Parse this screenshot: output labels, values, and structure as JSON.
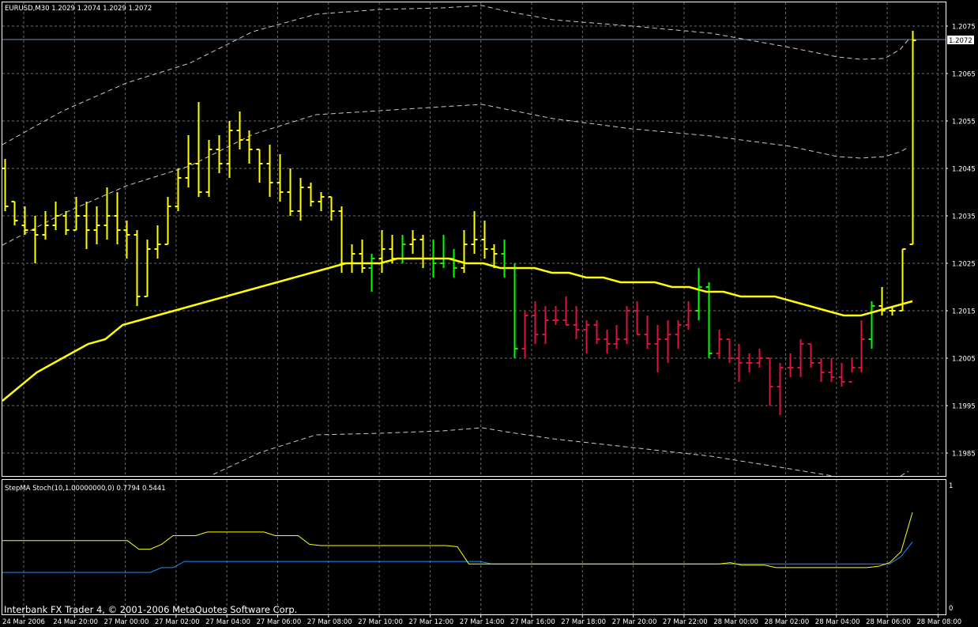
{
  "window": {
    "symbol_header": "EURUSD,M30  1.2029 1.2074 1.2029 1.2072",
    "indicator_header": "StepMA Stoch(10,1.00000000,0) 0.7794 0.5441",
    "copyright": "Interbank FX Trader 4, © 2001-2006 MetaQuotes Software Corp.",
    "current_price": "1.2072"
  },
  "price_axis": [
    "1.2075",
    "1.2065",
    "1.2055",
    "1.2045",
    "1.2035",
    "1.2025",
    "1.2015",
    "1.2005",
    "1.1995",
    "1.1985"
  ],
  "indicator_axis": [
    "1",
    "0"
  ],
  "time_axis": [
    "24 Mar 2006",
    "24 Mar 20:00",
    "27 Mar 00:00",
    "27 Mar 02:00",
    "27 Mar 04:00",
    "27 Mar 06:00",
    "27 Mar 08:00",
    "27 Mar 10:00",
    "27 Mar 12:00",
    "27 Mar 14:00",
    "27 Mar 16:00",
    "27 Mar 18:00",
    "27 Mar 20:00",
    "27 Mar 22:00",
    "28 Mar 00:00",
    "28 Mar 02:00",
    "28 Mar 04:00",
    "28 Mar 06:00",
    "28 Mar 08:00"
  ],
  "colors": {
    "background": "#000000",
    "frame": "#ffffff",
    "grid": "#6b6b6b",
    "bar_yellow": "#ffff00",
    "bar_green": "#00ff00",
    "bar_red": "#dc143c",
    "ma_line": "#ffff00",
    "envelope": "#c8c8c8",
    "bid_line": "#7890b4",
    "stoch_yellow": "#ffff00",
    "stoch_blue": "#1e90ff"
  },
  "chart_data": {
    "type": "ohlc",
    "symbol": "EURUSD",
    "timeframe": "M30",
    "ylim": [
      1.1982,
      1.2083
    ],
    "color_codes": {
      "y": "yellow",
      "g": "green",
      "r": "red"
    },
    "bars": [
      [
        1.2045,
        1.2047,
        1.2036,
        1.2037,
        "y"
      ],
      [
        1.2038,
        1.2038,
        1.2033,
        1.2034,
        "y"
      ],
      [
        1.2033,
        1.2037,
        1.2031,
        1.2032,
        "y"
      ],
      [
        1.2032,
        1.2035,
        1.2025,
        1.2031,
        "y"
      ],
      [
        1.2031,
        1.2036,
        1.203,
        1.2033,
        "y"
      ],
      [
        1.2033,
        1.2038,
        1.2032,
        1.2035,
        "y"
      ],
      [
        1.2035,
        1.2036,
        1.2031,
        1.2032,
        "y"
      ],
      [
        1.2032,
        1.2039,
        1.2032,
        1.2035,
        "y"
      ],
      [
        1.2035,
        1.2038,
        1.2028,
        1.2032,
        "y"
      ],
      [
        1.2032,
        1.2037,
        1.2029,
        1.2033,
        "y"
      ],
      [
        1.2033,
        1.2041,
        1.203,
        1.2035,
        "y"
      ],
      [
        1.2035,
        1.204,
        1.2029,
        1.2032,
        "y"
      ],
      [
        1.2032,
        1.2034,
        1.2026,
        1.2031,
        "y"
      ],
      [
        1.2031,
        1.2032,
        1.2016,
        1.2018,
        "y"
      ],
      [
        1.2018,
        1.203,
        1.2018,
        1.2028,
        "y"
      ],
      [
        1.2028,
        1.2033,
        1.2026,
        1.2029,
        "y"
      ],
      [
        1.2029,
        1.2039,
        1.2029,
        1.2037,
        "y"
      ],
      [
        1.2037,
        1.2045,
        1.2036,
        1.2043,
        "y"
      ],
      [
        1.2043,
        1.2052,
        1.2041,
        1.2046,
        "y"
      ],
      [
        1.2046,
        1.2059,
        1.2039,
        1.204,
        "y"
      ],
      [
        1.204,
        1.2051,
        1.2039,
        1.2049,
        "y"
      ],
      [
        1.2049,
        1.2052,
        1.2044,
        1.2046,
        "y"
      ],
      [
        1.2046,
        1.2055,
        1.2043,
        1.2053,
        "y"
      ],
      [
        1.2053,
        1.2057,
        1.2049,
        1.2051,
        "y"
      ],
      [
        1.2051,
        1.2053,
        1.2046,
        1.2049,
        "y"
      ],
      [
        1.2049,
        1.2049,
        1.2042,
        1.2046,
        "y"
      ],
      [
        1.2046,
        1.205,
        1.2039,
        1.2042,
        "y"
      ],
      [
        1.2042,
        1.2048,
        1.2038,
        1.204,
        "y"
      ],
      [
        1.204,
        1.2045,
        1.2035,
        1.2036,
        "y"
      ],
      [
        1.2036,
        1.2043,
        1.2034,
        1.2041,
        "y"
      ],
      [
        1.2041,
        1.2042,
        1.2037,
        1.2038,
        "y"
      ],
      [
        1.2038,
        1.204,
        1.2036,
        1.2039,
        "y"
      ],
      [
        1.2039,
        1.2039,
        1.2034,
        1.2036,
        "y"
      ],
      [
        1.2036,
        1.2037,
        1.2023,
        1.2025,
        "y"
      ],
      [
        1.2025,
        1.2029,
        1.2023,
        1.2027,
        "y"
      ],
      [
        1.2027,
        1.203,
        1.2023,
        1.2024,
        "y"
      ],
      [
        1.2024,
        1.2027,
        1.2019,
        1.2026,
        "g"
      ],
      [
        1.2026,
        1.2032,
        1.2023,
        1.2028,
        "y"
      ],
      [
        1.2028,
        1.2031,
        1.2025,
        1.2026,
        "y"
      ],
      [
        1.2026,
        1.2031,
        1.2025,
        1.2029,
        "g"
      ],
      [
        1.2029,
        1.2032,
        1.2027,
        1.203,
        "y"
      ],
      [
        1.203,
        1.2031,
        1.2024,
        1.2026,
        "y"
      ],
      [
        1.2026,
        1.203,
        1.2022,
        1.2025,
        "g"
      ],
      [
        1.2025,
        1.2031,
        1.2024,
        1.2026,
        "g"
      ],
      [
        1.2026,
        1.2028,
        1.2022,
        1.2024,
        "g"
      ],
      [
        1.2024,
        1.2032,
        1.2023,
        1.2029,
        "y"
      ],
      [
        1.2029,
        1.2036,
        1.2027,
        1.203,
        "y"
      ],
      [
        1.203,
        1.2034,
        1.2026,
        1.2028,
        "y"
      ],
      [
        1.2028,
        1.2029,
        1.2024,
        1.2027,
        "y"
      ],
      [
        1.2027,
        1.203,
        1.2022,
        1.2024,
        "g"
      ],
      [
        1.2024,
        1.2025,
        1.2005,
        1.2007,
        "g"
      ],
      [
        1.2007,
        1.2015,
        1.2005,
        1.2014,
        "r"
      ],
      [
        1.2014,
        1.2017,
        1.2008,
        1.201,
        "r"
      ],
      [
        1.201,
        1.2016,
        1.2008,
        1.2013,
        "r"
      ],
      [
        1.2013,
        1.2016,
        1.2012,
        1.2013,
        "r"
      ],
      [
        1.2013,
        1.2018,
        1.2012,
        1.2012,
        "r"
      ],
      [
        1.2012,
        1.2016,
        1.2009,
        1.2011,
        "r"
      ],
      [
        1.2011,
        1.2013,
        1.2006,
        1.2012,
        "r"
      ],
      [
        1.2012,
        1.2013,
        1.2008,
        1.2009,
        "r"
      ],
      [
        1.2009,
        1.2011,
        1.2006,
        1.2008,
        "r"
      ],
      [
        1.2008,
        1.2012,
        1.2007,
        1.2009,
        "r"
      ],
      [
        1.2009,
        1.2016,
        1.2008,
        1.2015,
        "r"
      ],
      [
        1.2015,
        1.2017,
        1.201,
        1.201,
        "r"
      ],
      [
        1.201,
        1.2014,
        1.2007,
        1.2008,
        "r"
      ],
      [
        1.2008,
        1.2012,
        1.2002,
        1.2009,
        "r"
      ],
      [
        1.2009,
        1.2013,
        1.2004,
        1.201,
        "r"
      ],
      [
        1.201,
        1.2013,
        1.2007,
        1.2012,
        "r"
      ],
      [
        1.2012,
        1.2017,
        1.2011,
        1.2015,
        "r"
      ],
      [
        1.2015,
        1.2024,
        1.2013,
        1.202,
        "g"
      ],
      [
        1.202,
        1.2021,
        1.2005,
        1.2006,
        "g"
      ],
      [
        1.2006,
        1.2011,
        1.2005,
        1.2009,
        "r"
      ],
      [
        1.2009,
        1.2009,
        1.2004,
        1.2005,
        "r"
      ],
      [
        1.2005,
        1.2008,
        1.2,
        1.2004,
        "r"
      ],
      [
        1.2004,
        1.2006,
        1.2002,
        1.2004,
        "r"
      ],
      [
        1.2004,
        1.2007,
        1.2003,
        1.2005,
        "r"
      ],
      [
        1.2005,
        1.2005,
        1.1995,
        1.1999,
        "r"
      ],
      [
        1.1999,
        1.2004,
        1.1993,
        1.2003,
        "r"
      ],
      [
        1.2003,
        1.2006,
        1.2001,
        1.2003,
        "r"
      ],
      [
        1.2003,
        1.2009,
        1.2001,
        1.2008,
        "r"
      ],
      [
        1.2008,
        1.2008,
        1.2003,
        1.2004,
        "r"
      ],
      [
        1.2004,
        1.2005,
        1.2,
        1.2002,
        "r"
      ],
      [
        1.2002,
        1.2005,
        1.2,
        1.2001,
        "r"
      ],
      [
        1.2001,
        1.2004,
        1.1999,
        1.2,
        "r"
      ],
      [
        1.2,
        1.2005,
        1.2002,
        1.2003,
        "r"
      ],
      [
        1.2003,
        1.2013,
        1.2002,
        1.2009,
        "r"
      ],
      [
        1.2009,
        1.2017,
        1.2007,
        1.2016,
        "g"
      ],
      [
        1.2016,
        1.202,
        1.2014,
        1.2015,
        "y"
      ],
      [
        1.2015,
        1.2016,
        1.2014,
        1.2015,
        "y"
      ],
      [
        1.2015,
        1.2028,
        1.2015,
        1.2028,
        "y"
      ],
      [
        1.2029,
        1.2074,
        1.2029,
        1.2072,
        "y"
      ]
    ],
    "moving_average": [
      1.1996,
      1.1999,
      1.2002,
      1.2004,
      1.2006,
      1.2008,
      1.2009,
      1.2012,
      1.2013,
      1.2014,
      1.2015,
      1.2016,
      1.2017,
      1.2018,
      1.2019,
      1.202,
      1.2021,
      1.2022,
      1.2023,
      1.2024,
      1.2025,
      1.2025,
      1.2025,
      1.2026,
      1.2026,
      1.2026,
      1.2026,
      1.2025,
      1.2025,
      1.2024,
      1.2024,
      1.2024,
      1.2023,
      1.2023,
      1.2022,
      1.2022,
      1.2021,
      1.2021,
      1.2021,
      1.202,
      1.202,
      1.2019,
      1.2019,
      1.2018,
      1.2018,
      1.2018,
      1.2017,
      1.2016,
      1.2015,
      1.2014,
      1.2014,
      1.2015,
      1.2016,
      1.2017
    ],
    "stoch_main": [
      0.55,
      0.55,
      0.55,
      0.55,
      0.55,
      0.55,
      0.55,
      0.55,
      0.55,
      0.55,
      0.55,
      0.55,
      0.48,
      0.48,
      0.52,
      0.59,
      0.59,
      0.59,
      0.62,
      0.62,
      0.62,
      0.62,
      0.62,
      0.62,
      0.59,
      0.59,
      0.59,
      0.52,
      0.51,
      0.51,
      0.51,
      0.51,
      0.51,
      0.51,
      0.51,
      0.51,
      0.51,
      0.51,
      0.51,
      0.51,
      0.5,
      0.36,
      0.36,
      0.36,
      0.36,
      0.36,
      0.36,
      0.36,
      0.36,
      0.36,
      0.36,
      0.36,
      0.36,
      0.36,
      0.36,
      0.36,
      0.36,
      0.36,
      0.36,
      0.36,
      0.36,
      0.36,
      0.36,
      0.36,
      0.37,
      0.35,
      0.35,
      0.35,
      0.33,
      0.33,
      0.33,
      0.33,
      0.33,
      0.33,
      0.33,
      0.33,
      0.33,
      0.34,
      0.37,
      0.46,
      0.78
    ],
    "stoch_signal": [
      0.29,
      0.29,
      0.29,
      0.29,
      0.29,
      0.29,
      0.29,
      0.29,
      0.29,
      0.29,
      0.29,
      0.29,
      0.29,
      0.29,
      0.33,
      0.33,
      0.38,
      0.38,
      0.38,
      0.38,
      0.38,
      0.38,
      0.38,
      0.38,
      0.38,
      0.38,
      0.38,
      0.38,
      0.38,
      0.38,
      0.38,
      0.38,
      0.38,
      0.38,
      0.38,
      0.38,
      0.38,
      0.38,
      0.38,
      0.38,
      0.38,
      0.38,
      0.38,
      0.36,
      0.36,
      0.36,
      0.36,
      0.36,
      0.36,
      0.36,
      0.36,
      0.36,
      0.36,
      0.36,
      0.36,
      0.36,
      0.36,
      0.36,
      0.36,
      0.36,
      0.36,
      0.36,
      0.36,
      0.36,
      0.36,
      0.36,
      0.36,
      0.36,
      0.36,
      0.36,
      0.36,
      0.36,
      0.36,
      0.36,
      0.36,
      0.36,
      0.36,
      0.36,
      0.36,
      0.42,
      0.54
    ]
  }
}
